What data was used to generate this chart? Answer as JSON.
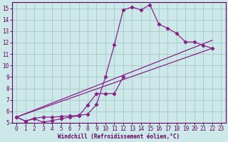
{
  "bg_color": "#cce8e8",
  "grid_color": "#aacccc",
  "line_color": "#882288",
  "xlabel": "Windchill (Refroidissement éolien,°C)",
  "xlabel_color": "#660066",
  "tick_color": "#660066",
  "xlim": [
    -0.5,
    23.5
  ],
  "ylim": [
    5,
    15.5
  ],
  "xticks": [
    0,
    1,
    2,
    3,
    4,
    5,
    6,
    7,
    8,
    9,
    10,
    11,
    12,
    13,
    14,
    15,
    16,
    17,
    18,
    19,
    20,
    21,
    22,
    23
  ],
  "yticks": [
    5,
    6,
    7,
    8,
    9,
    10,
    11,
    12,
    13,
    14,
    15
  ],
  "line1_x": [
    0,
    1,
    2,
    3,
    4,
    5,
    6,
    7,
    8,
    9,
    10,
    11,
    12,
    13,
    14,
    15,
    16,
    17,
    18,
    19,
    20,
    21,
    22
  ],
  "line1_y": [
    5.5,
    5.15,
    5.4,
    5.5,
    5.5,
    5.55,
    5.6,
    5.65,
    5.75,
    6.6,
    9.0,
    11.8,
    14.85,
    15.1,
    14.85,
    15.3,
    13.6,
    13.25,
    12.8,
    12.05,
    12.05,
    11.75,
    11.5
  ],
  "line2_x": [
    0,
    1,
    2,
    3,
    4,
    5,
    6,
    7,
    8,
    9,
    10,
    11,
    12
  ],
  "line2_y": [
    5.5,
    5.15,
    5.35,
    5.05,
    5.2,
    5.35,
    5.5,
    5.6,
    6.55,
    7.55,
    7.55,
    7.55,
    9.0
  ],
  "line3_x": [
    0,
    22
  ],
  "line3_y": [
    5.5,
    11.5
  ],
  "line4_x": [
    0,
    22
  ],
  "line4_y": [
    5.5,
    12.2
  ]
}
